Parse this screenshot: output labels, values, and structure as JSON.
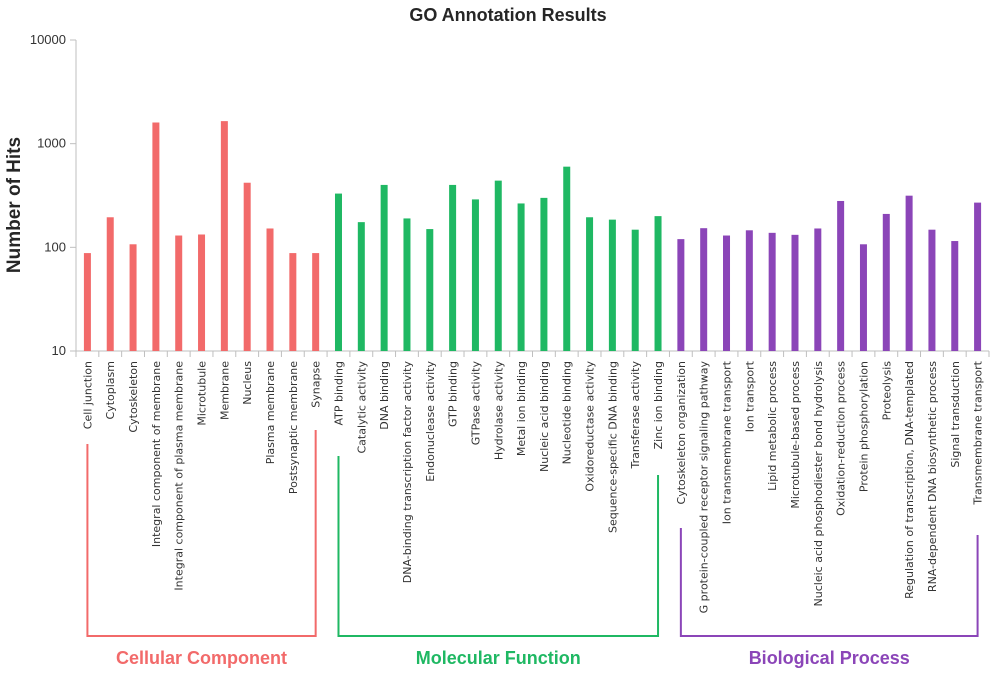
{
  "chart_data": {
    "type": "bar",
    "title": "GO Annotation Results",
    "ylabel": "Number of Hits",
    "xlabel": "",
    "yscale": "log",
    "ylim": [
      10,
      10000
    ],
    "yticks": [
      "10",
      "100",
      "1000",
      "10000"
    ],
    "grid": false,
    "categories": [
      "Cell junction",
      "Cytoplasm",
      "Cytoskeleton",
      "Integral component of membrane",
      "Integral component of plasma membrane",
      "Microtubule",
      "Membrane",
      "Nucleus",
      "Plasma membrane",
      "Postsynaptic membrane",
      "Synapse",
      "ATP binding",
      "Catalytic activity",
      "DNA binding",
      "DNA-binding transcription factor activity",
      "Endonuclease activity",
      "GTP binding",
      "GTPase activity",
      "Hydrolase activity",
      "Metal ion binding",
      "Nucleic acid binding",
      "Nucleotide binding",
      "Oxidoreductase activity",
      "Sequence-specific DNA binding",
      "Transferase activity",
      "Zinc ion binding",
      "Cytoskeleton organization",
      "G protein-coupled receptor signaling pathway",
      "Ion transmembrane transport",
      "Ion transport",
      "Lipid metabolic process",
      "Microtubule-based process",
      "Nucleic acid phosphodiester bond hydrolysis",
      "Oxidation-reduction process",
      "Protein phosphorylation",
      "Proteolysis",
      "Regulation of transcription, DNA-templated",
      "RNA-dependent DNA biosynthetic process",
      "Signal transduction",
      "Transmembrane transport"
    ],
    "values": [
      88,
      195,
      107,
      1600,
      130,
      133,
      1650,
      420,
      152,
      88,
      88,
      330,
      175,
      400,
      190,
      150,
      400,
      290,
      440,
      265,
      300,
      600,
      195,
      185,
      148,
      200,
      120,
      153,
      130,
      146,
      138,
      132,
      152,
      280,
      107,
      210,
      315,
      148,
      115,
      270
    ],
    "groups": [
      {
        "name": "Cellular Component",
        "start": 0,
        "end": 10,
        "color": "#f26a6a"
      },
      {
        "name": "Molecular Function",
        "start": 11,
        "end": 25,
        "color": "#1fb863"
      },
      {
        "name": "Biological Process",
        "start": 26,
        "end": 39,
        "color": "#8b45b8"
      }
    ]
  }
}
